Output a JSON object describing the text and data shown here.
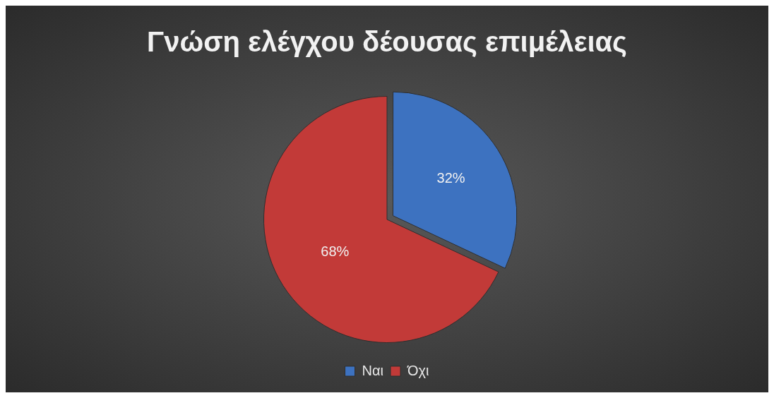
{
  "chart_data": {
    "type": "pie",
    "title": "Γνώση ελέγχου δέουσας επιμέλειας",
    "categories": [
      "Ναι",
      "Όχι"
    ],
    "values": [
      32,
      68
    ],
    "colors": [
      "#3d72c0",
      "#c23a38"
    ],
    "value_labels": [
      "32%",
      "68%"
    ],
    "legend": "bottom"
  }
}
